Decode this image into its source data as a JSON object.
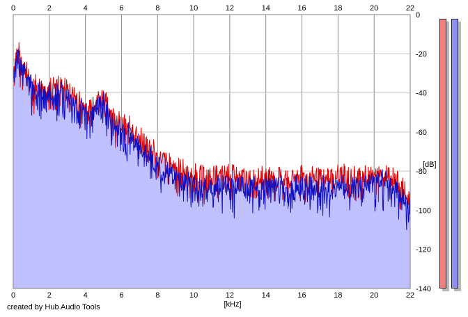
{
  "footer": {
    "credit": "created by Hub Audio Tools"
  },
  "colors": {
    "left_channel": "#e00000",
    "right_channel": "#1010c0",
    "fill": "#c0c0ff",
    "grid": "#c8c8c8",
    "left_meter": "#f08080",
    "right_meter": "#9090f0"
  },
  "meters": {
    "left": {
      "level": 1.0
    },
    "right": {
      "level": 1.0
    }
  },
  "chart_data": {
    "type": "area",
    "xlabel": "[kHz]",
    "ylabel": "[dB]",
    "xlim": [
      0,
      22
    ],
    "ylim": [
      -140,
      0
    ],
    "x_ticks": [
      0,
      2,
      4,
      6,
      8,
      10,
      12,
      14,
      16,
      18,
      20,
      22
    ],
    "y_ticks": [
      0,
      -20,
      -40,
      -60,
      -80,
      -100,
      -120,
      -140
    ],
    "grid": true,
    "x": [
      0,
      0.25,
      0.5,
      0.75,
      1,
      1.5,
      2,
      2.5,
      3,
      3.5,
      4,
      4.5,
      5,
      5.5,
      6,
      6.5,
      7,
      7.5,
      8,
      8.5,
      9,
      9.5,
      10,
      11,
      12,
      13,
      14,
      15,
      16,
      17,
      18,
      19,
      20,
      20.5,
      21,
      21.5,
      22
    ],
    "series": [
      {
        "values": [
          -28,
          -18,
          -25,
          -30,
          -33,
          -38,
          -37,
          -36,
          -38,
          -42,
          -48,
          -44,
          -42,
          -52,
          -56,
          -58,
          -63,
          -67,
          -72,
          -76,
          -78,
          -80,
          -82,
          -83,
          -82,
          -84,
          -83,
          -84,
          -83,
          -84,
          -82,
          -83,
          -82,
          -80,
          -83,
          -88,
          -96
        ]
      },
      {
        "values": [
          -30,
          -19,
          -26,
          -31,
          -35,
          -39,
          -39,
          -38,
          -40,
          -44,
          -50,
          -46,
          -44,
          -54,
          -58,
          -60,
          -66,
          -70,
          -76,
          -80,
          -81,
          -83,
          -86,
          -87,
          -86,
          -88,
          -86,
          -87,
          -86,
          -87,
          -86,
          -87,
          -85,
          -84,
          -86,
          -91,
          -98
        ]
      }
    ]
  }
}
